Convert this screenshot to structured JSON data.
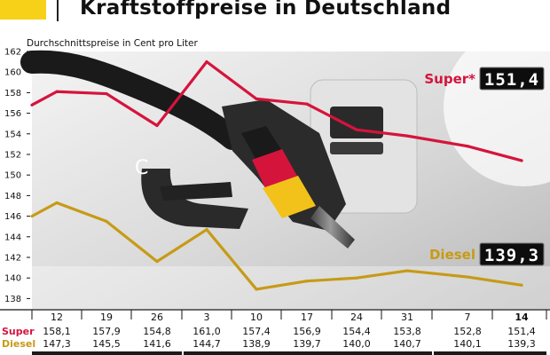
{
  "title": "Kraftstoffpreise in Deutschland",
  "colors": {
    "super": "#d5143c",
    "diesel": "#c79a17",
    "accent": "#f7d117"
  },
  "chart_data": {
    "type": "line",
    "subtitle": "Durchschnittspreise in Cent pro Liter",
    "ylim": [
      137,
      162
    ],
    "yticks": [
      138,
      140,
      142,
      144,
      146,
      148,
      150,
      152,
      154,
      156,
      158,
      160,
      162
    ],
    "categories": [
      "12",
      "19",
      "26",
      "3",
      "10",
      "17",
      "24",
      "31",
      "7",
      "14"
    ],
    "highlight_category": "14",
    "series": [
      {
        "name": "Super",
        "label": "Super*",
        "display": "151,4",
        "values": [
          158.1,
          157.9,
          154.8,
          161.0,
          157.4,
          156.9,
          154.4,
          153.8,
          152.8,
          151.4
        ],
        "display_values": [
          "158,1",
          "157,9",
          "154,8",
          "161,0",
          "157,4",
          "156,9",
          "154,4",
          "153,8",
          "152,8",
          "151,4"
        ]
      },
      {
        "name": "Diesel",
        "label": "Diesel",
        "display": "139,3",
        "values": [
          147.3,
          145.5,
          141.6,
          144.7,
          138.9,
          139.7,
          140.0,
          140.7,
          140.1,
          139.3
        ],
        "display_values": [
          "147,3",
          "145,5",
          "141,6",
          "144,7",
          "138,9",
          "139,7",
          "140,0",
          "140,7",
          "140,1",
          "139,3"
        ]
      }
    ],
    "grid": false
  }
}
